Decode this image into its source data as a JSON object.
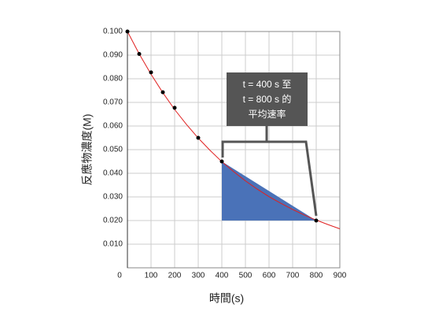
{
  "chart_data": {
    "type": "line",
    "x_label": "時間(s)",
    "y_label": "反應物濃度(M)",
    "xlim": [
      0,
      900
    ],
    "ylim": [
      0,
      0.1
    ],
    "xticks": [
      0,
      100,
      200,
      300,
      400,
      500,
      600,
      700,
      800,
      900
    ],
    "yticks": [
      {
        "value": 0.01,
        "label": "0.010"
      },
      {
        "value": 0.02,
        "label": "0.020"
      },
      {
        "value": 0.03,
        "label": "0.030"
      },
      {
        "value": 0.04,
        "label": "0.040"
      },
      {
        "value": 0.05,
        "label": "0.050"
      },
      {
        "value": 0.06,
        "label": "0.060"
      },
      {
        "value": 0.07,
        "label": "0.070"
      },
      {
        "value": 0.08,
        "label": "0.080"
      },
      {
        "value": 0.09,
        "label": "0.090"
      },
      {
        "value": 0.1,
        "label": "0.100"
      }
    ],
    "grid": true,
    "curve": {
      "color": "#e02020",
      "x": [
        0,
        50,
        100,
        150,
        200,
        250,
        300,
        350,
        400,
        450,
        500,
        550,
        600,
        650,
        700,
        750,
        800,
        850,
        900
      ],
      "values": [
        0.1,
        0.0905,
        0.0819,
        0.0741,
        0.067,
        0.0607,
        0.0549,
        0.0497,
        0.0449,
        0.0407,
        0.0368,
        0.0333,
        0.0301,
        0.0273,
        0.0247,
        0.0223,
        0.0202,
        0.0183,
        0.0165
      ]
    },
    "points": {
      "color": "#000000",
      "x": [
        0,
        50,
        100,
        150,
        200,
        300,
        400,
        800
      ],
      "values": [
        0.1,
        0.0905,
        0.0827,
        0.0743,
        0.0677,
        0.055,
        0.045,
        0.02
      ]
    },
    "highlight": {
      "color": "#4a72b8",
      "x": [
        400,
        800,
        400
      ],
      "values": [
        0.045,
        0.02,
        0.02
      ]
    },
    "annotation": [
      "t = 400 s 至",
      "t = 800 s 的",
      "平均速率"
    ]
  }
}
